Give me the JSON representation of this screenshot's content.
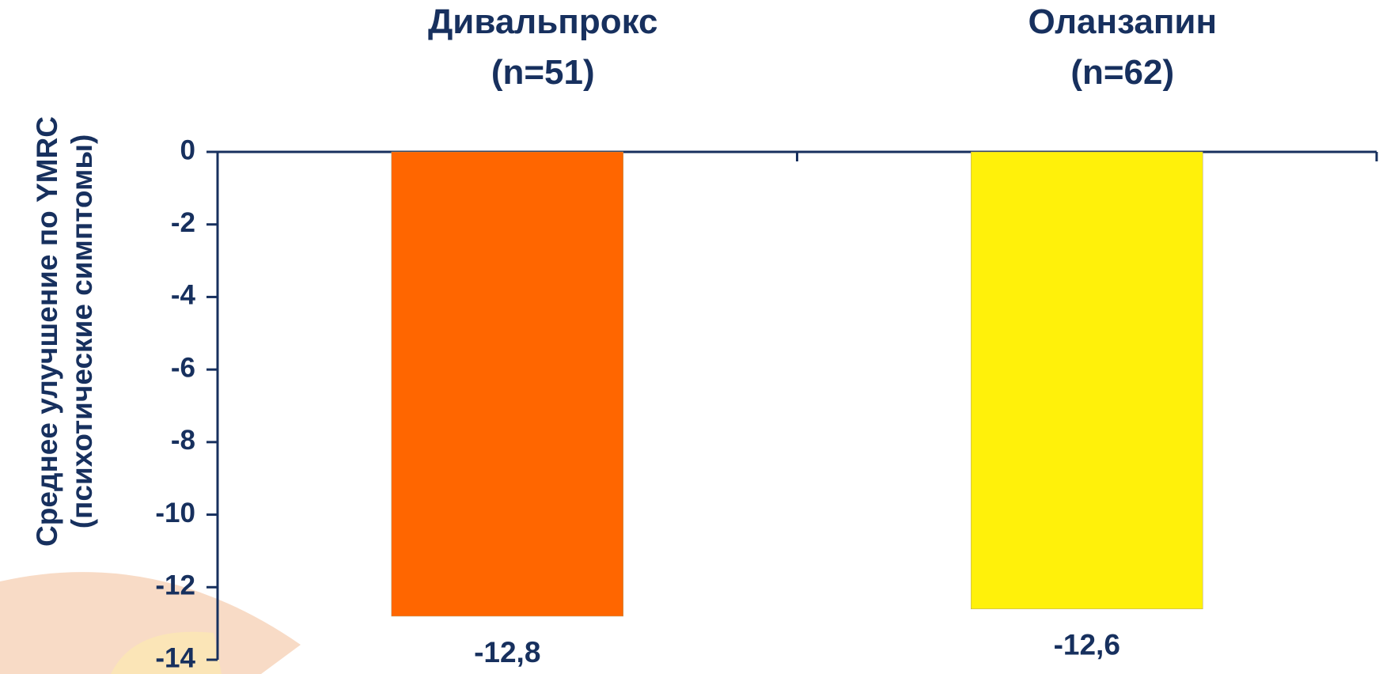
{
  "chart_data": {
    "type": "bar",
    "categories": [
      "Дивальпрокс\n(n=51)",
      "Оланзапин\n(n=62)"
    ],
    "series": [
      {
        "values": [
          -12.8,
          -12.6
        ],
        "value_labels": [
          "-12,8",
          "-12,6"
        ],
        "colors": [
          "#ff6600",
          "#fff10a"
        ]
      }
    ],
    "y_label": "Среднее улучшение по YMRC\n(психотические симптомы)",
    "ylim": [
      -14,
      0
    ],
    "yticks": [
      0,
      -2,
      -4,
      -6,
      -8,
      -10,
      -12,
      -14
    ],
    "grid": false
  }
}
